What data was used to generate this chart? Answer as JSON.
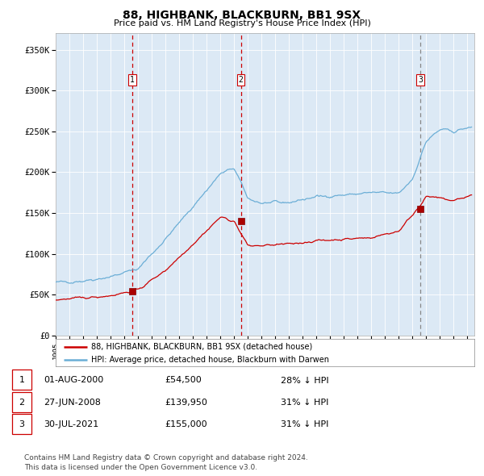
{
  "title": "88, HIGHBANK, BLACKBURN, BB1 9SX",
  "subtitle": "Price paid vs. HM Land Registry's House Price Index (HPI)",
  "bg_color": "#dce9f5",
  "hpi_color": "#6baed6",
  "price_color": "#cc0000",
  "ylim": [
    0,
    370000
  ],
  "yticks": [
    0,
    50000,
    100000,
    150000,
    200000,
    250000,
    300000,
    350000
  ],
  "ytick_labels": [
    "£0",
    "£50K",
    "£100K",
    "£150K",
    "£200K",
    "£250K",
    "£300K",
    "£350K"
  ],
  "xmin": 1995.0,
  "xmax": 2025.5,
  "sale_dates": [
    2000.583,
    2008.49,
    2021.58
  ],
  "sale_prices": [
    54500,
    139950,
    155000
  ],
  "sale_labels": [
    "1",
    "2",
    "3"
  ],
  "legend_line1": "88, HIGHBANK, BLACKBURN, BB1 9SX (detached house)",
  "legend_line2": "HPI: Average price, detached house, Blackburn with Darwen",
  "table_data": [
    [
      "1",
      "01-AUG-2000",
      "£54,500",
      "28% ↓ HPI"
    ],
    [
      "2",
      "27-JUN-2008",
      "£139,950",
      "31% ↓ HPI"
    ],
    [
      "3",
      "30-JUL-2021",
      "£155,000",
      "31% ↓ HPI"
    ]
  ],
  "footnote1": "Contains HM Land Registry data © Crown copyright and database right 2024.",
  "footnote2": "This data is licensed under the Open Government Licence v3.0."
}
